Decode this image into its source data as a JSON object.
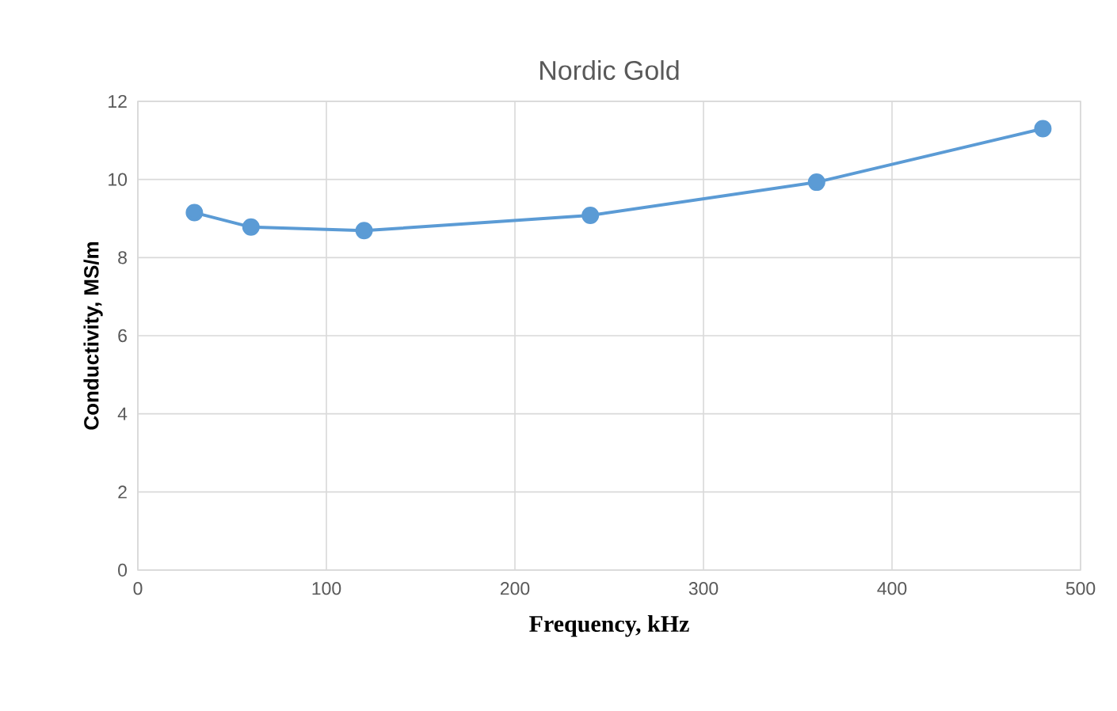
{
  "chart_data": {
    "type": "line",
    "title": "Nordic Gold",
    "xlabel": "Frequency, kHz",
    "ylabel": "Conductivity, MS/m",
    "x": [
      30,
      60,
      120,
      240,
      360,
      480
    ],
    "series": [
      {
        "color": "#5b9bd5",
        "values": [
          9.15,
          8.78,
          8.69,
          9.08,
          9.93,
          11.3
        ]
      }
    ],
    "xlim": [
      0,
      500
    ],
    "xticks": [
      0,
      100,
      200,
      300,
      400,
      500
    ],
    "ylim": [
      0,
      12
    ],
    "yticks": [
      0,
      2,
      4,
      6,
      8,
      10,
      12
    ],
    "grid": true,
    "marker": "circle",
    "line_style": "solid"
  }
}
